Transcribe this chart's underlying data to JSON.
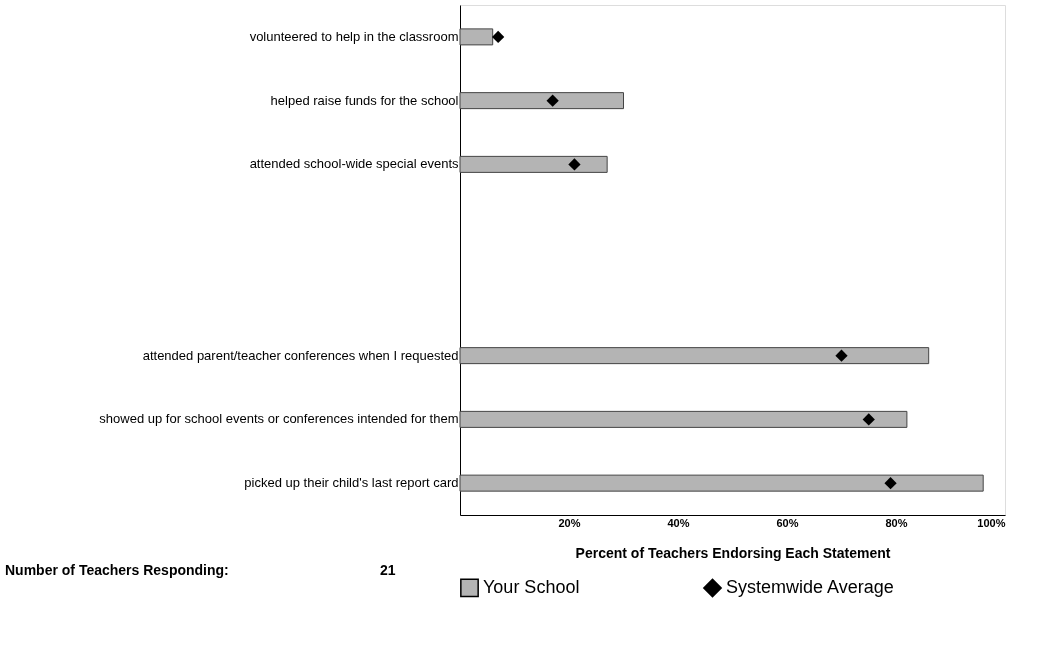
{
  "chart_data": {
    "type": "bar",
    "orientation": "horizontal",
    "xlabel": "Percent of Teachers Endorsing Each Statement",
    "categories": [
      "volunteered to help in the classroom",
      "helped raise funds for the school",
      "attended school-wide special events",
      null,
      null,
      "attended parent/teacher conferences when I requested",
      "showed up for school events or conferences intended for them",
      "picked up their child's last report card"
    ],
    "series": [
      {
        "name": "Your School",
        "type": "bar",
        "color": "#b4b4b4",
        "values": [
          6,
          30,
          27,
          null,
          null,
          86,
          82,
          96
        ]
      },
      {
        "name": "Systemwide Average",
        "type": "scatter",
        "color": "#000000",
        "values": [
          7,
          17,
          21,
          null,
          null,
          70,
          75,
          79
        ]
      }
    ],
    "xlim": [
      0,
      100
    ],
    "xticks": [
      {
        "value": 20,
        "label": "20%"
      },
      {
        "value": 40,
        "label": "40%"
      },
      {
        "value": 60,
        "label": "60%"
      },
      {
        "value": 80,
        "label": "80%"
      },
      {
        "value": 100,
        "label": "100%"
      }
    ],
    "marker": "diamond",
    "grid": false,
    "legend": "bottom",
    "annotations": [
      "Number of Teachers Responding:",
      "21"
    ]
  }
}
